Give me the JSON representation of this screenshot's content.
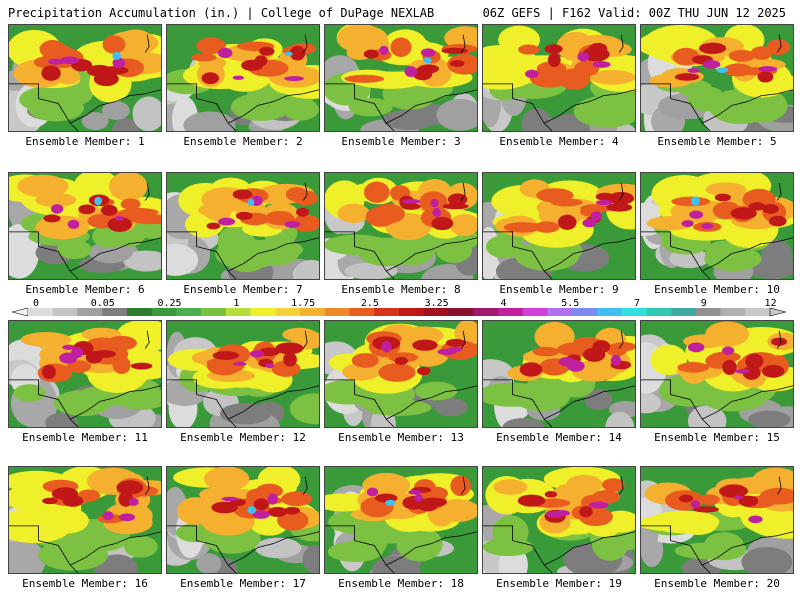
{
  "header": {
    "left_title": "Precipitation Accumulation (in.) | College of DuPage NEXLAB",
    "right_title": "06Z GEFS | F162 Valid: 00Z THU JUN 12 2025"
  },
  "panel_caption_prefix": "Ensemble Member: ",
  "members": [
    {
      "number": 1,
      "caption": "Ensemble Member: 1"
    },
    {
      "number": 2,
      "caption": "Ensemble Member: 2"
    },
    {
      "number": 3,
      "caption": "Ensemble Member: 3"
    },
    {
      "number": 4,
      "caption": "Ensemble Member: 4"
    },
    {
      "number": 5,
      "caption": "Ensemble Member: 5"
    },
    {
      "number": 6,
      "caption": "Ensemble Member: 6"
    },
    {
      "number": 7,
      "caption": "Ensemble Member: 7"
    },
    {
      "number": 8,
      "caption": "Ensemble Member: 8"
    },
    {
      "number": 9,
      "caption": "Ensemble Member: 9"
    },
    {
      "number": 10,
      "caption": "Ensemble Member: 10"
    },
    {
      "number": 11,
      "caption": "Ensemble Member: 11"
    },
    {
      "number": 12,
      "caption": "Ensemble Member: 12"
    },
    {
      "number": 13,
      "caption": "Ensemble Member: 13"
    },
    {
      "number": 14,
      "caption": "Ensemble Member: 14"
    },
    {
      "number": 15,
      "caption": "Ensemble Member: 15"
    },
    {
      "number": 16,
      "caption": "Ensemble Member: 16"
    },
    {
      "number": 17,
      "caption": "Ensemble Member: 17"
    },
    {
      "number": 18,
      "caption": "Ensemble Member: 18"
    },
    {
      "number": 19,
      "caption": "Ensemble Member: 19"
    },
    {
      "number": 20,
      "caption": "Ensemble Member: 20"
    }
  ],
  "colorbar": {
    "labels": [
      "0",
      "0.05",
      "0.25",
      "1",
      "1.75",
      "2.5",
      "3.25",
      "4",
      "5.5",
      "7",
      "9",
      "12"
    ],
    "colors": [
      "#dcdcdc",
      "#c3c3c3",
      "#a0a0a0",
      "#7d7d7d",
      "#2e7d2e",
      "#3a9a3a",
      "#4caf50",
      "#7cc142",
      "#b8dc3a",
      "#f0f02a",
      "#f5d23a",
      "#f5b030",
      "#f08a28",
      "#e85c20",
      "#d8301c",
      "#c01818",
      "#a01020",
      "#8a1030",
      "#a0186a",
      "#c020a0",
      "#d040d8",
      "#b070f0",
      "#7a8cf0",
      "#40c0f0",
      "#30e0e0",
      "#30c8b0",
      "#40a8a0",
      "#909090",
      "#b0b0b0",
      "#c8c8c8"
    ]
  },
  "legend_colors": {
    "ocean": "#ffffff",
    "border": "#000000"
  }
}
